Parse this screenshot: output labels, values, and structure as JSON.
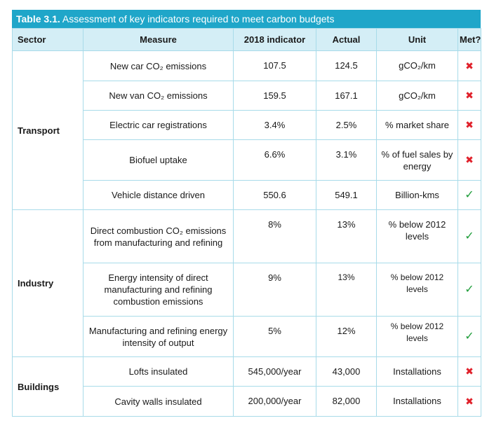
{
  "title": {
    "label": "Table 3.1.",
    "text": "Assessment of key indicators required to meet carbon budgets"
  },
  "headers": [
    "Sector",
    "Measure",
    "2018 indicator",
    "Actual",
    "Unit",
    "Met?"
  ],
  "sectors": [
    "Transport",
    "Industry",
    "Buildings"
  ],
  "rows": [
    {
      "measure": "New car CO₂ emissions",
      "indicator": "107.5",
      "actual": "124.5",
      "unit": "gCO₂/km",
      "met": "✖"
    },
    {
      "measure": "New van CO₂ emissions",
      "indicator": "159.5",
      "actual": "167.1",
      "unit": "gCO₂/km",
      "met": "✖"
    },
    {
      "measure": "Electric car registrations",
      "indicator": "3.4%",
      "actual": "2.5%",
      "unit": "% market share",
      "met": "✖"
    },
    {
      "measure": "Biofuel uptake",
      "indicator": "6.6%",
      "actual": "3.1%",
      "unit": "% of fuel sales by energy",
      "met": "✖"
    },
    {
      "measure": "Vehicle distance driven",
      "indicator": "550.6",
      "actual": "549.1",
      "unit": "Billion-kms",
      "met": "✓"
    },
    {
      "measure": "Direct combustion CO₂ emissions from manufacturing and refining",
      "indicator": "8%",
      "actual": "13%",
      "unit": "% below 2012 levels",
      "met": "✓"
    },
    {
      "measure": "Energy intensity of direct manufacturing and refining combustion emissions",
      "indicator": "9%",
      "actual": "13%",
      "unit": "% below 2012 levels",
      "met": "✓"
    },
    {
      "measure": "Manufacturing and refining energy intensity of output",
      "indicator": "5%",
      "actual": "12%",
      "unit": "% below 2012 levels",
      "met": "✓"
    },
    {
      "measure": "Lofts insulated",
      "indicator": "545,000/year",
      "actual": "43,000",
      "unit": "Installations",
      "met": "✖"
    },
    {
      "measure": "Cavity walls insulated",
      "indicator": "200,000/year",
      "actual": "82,000",
      "unit": "Installations",
      "met": "✖"
    }
  ],
  "colors": {
    "title_bg": "#1fa6c9",
    "header_bg": "#d4eef6",
    "border": "#a8dbe9",
    "cross": "#e0202a",
    "tick": "#1f9d3a"
  }
}
